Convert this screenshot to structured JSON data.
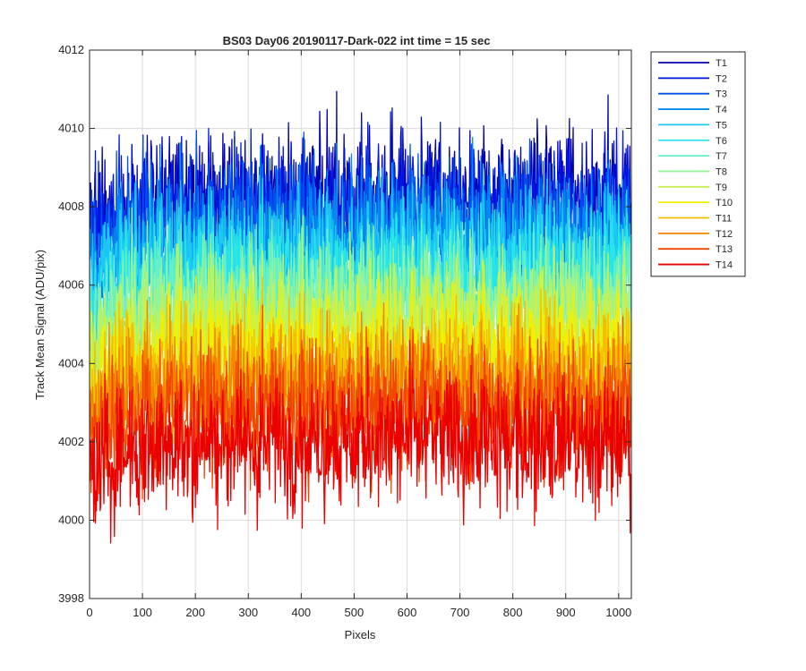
{
  "chart_data": {
    "type": "line",
    "title": "BS03 Day06 20190117-Dark-022 int time = 15 sec",
    "xlabel": "Pixels",
    "ylabel": "Track Mean Signal (ADU/pix)",
    "xlim": [
      0,
      1024
    ],
    "ylim": [
      3998,
      4012
    ],
    "xticks": [
      0,
      100,
      200,
      300,
      400,
      500,
      600,
      700,
      800,
      900,
      1000
    ],
    "yticks": [
      3998,
      4000,
      4002,
      4004,
      4006,
      4008,
      4010,
      4012
    ],
    "grid": true,
    "legend_position": "outside-top-right",
    "n_points": 1024,
    "noise_amplitude": 1.3,
    "series": [
      {
        "name": "T1",
        "color": "#0000b4",
        "mean": 4008.3,
        "max": 4011.2
      },
      {
        "name": "T2",
        "color": "#0014e6",
        "mean": 4008.0,
        "max": 4011.4
      },
      {
        "name": "T3",
        "color": "#0050f0",
        "mean": 4007.6,
        "max": 4010.4
      },
      {
        "name": "T4",
        "color": "#008cf0",
        "mean": 4007.2,
        "max": 4010.3
      },
      {
        "name": "T5",
        "color": "#1ec8f5",
        "mean": 4006.8,
        "max": 4010.4
      },
      {
        "name": "T6",
        "color": "#28e6e6",
        "mean": 4006.3,
        "max": 4009.6
      },
      {
        "name": "T7",
        "color": "#64f0c8",
        "mean": 4005.8,
        "max": 4009.2
      },
      {
        "name": "T8",
        "color": "#96f596",
        "mean": 4005.4,
        "max": 4008.8
      },
      {
        "name": "T9",
        "color": "#c8f050",
        "mean": 4004.9,
        "max": 4008.5
      },
      {
        "name": "T10",
        "color": "#f0f000",
        "mean": 4004.4,
        "max": 4008.0
      },
      {
        "name": "T11",
        "color": "#f5be00",
        "mean": 4003.9,
        "max": 4007.6
      },
      {
        "name": "T12",
        "color": "#f58200",
        "mean": 4003.4,
        "max": 4007.0
      },
      {
        "name": "T13",
        "color": "#f04600",
        "mean": 4002.8,
        "max": 4006.7
      },
      {
        "name": "T14",
        "color": "#eb0000",
        "mean": 4002.0,
        "max": 4006.0,
        "min": 3998.5
      }
    ]
  }
}
